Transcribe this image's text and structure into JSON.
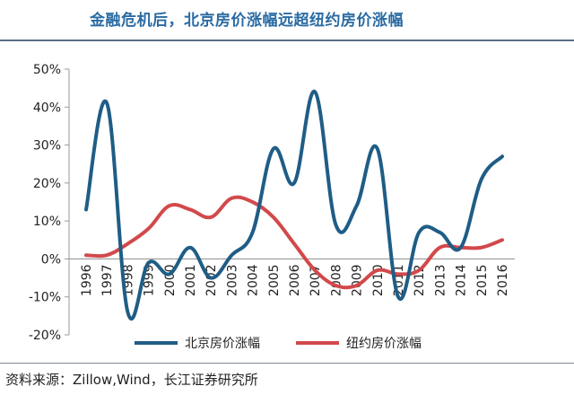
{
  "title": "金融危机后，北京房价涨幅远超纽约房价涨幅",
  "source": "资料来源：Zillow,Wind，长江证券研究所",
  "colors": {
    "beijing": "#1f5d86",
    "newyork": "#d2494b",
    "accent": "#2a6ba3"
  },
  "chart_data": {
    "type": "line",
    "title": "金融危机后，北京房价涨幅远超纽约房价涨幅",
    "xlabel": "",
    "ylabel": "",
    "categories": [
      "1996",
      "1997",
      "1998",
      "1999",
      "2000",
      "2001",
      "2002",
      "2003",
      "2004",
      "2005",
      "2006",
      "2007",
      "2008",
      "2009",
      "2010",
      "2011",
      "2012",
      "2013",
      "2014",
      "2015",
      "2016"
    ],
    "yticks": [
      "-20%",
      "-10%",
      "0%",
      "10%",
      "20%",
      "30%",
      "40%",
      "50%"
    ],
    "ylim": [
      -20,
      50
    ],
    "grid": false,
    "legend": "bottom",
    "series": [
      {
        "name": "北京房价涨幅",
        "color": "#1f5d86",
        "values": [
          13,
          41,
          -14,
          -1,
          -4,
          3,
          -5,
          1,
          7,
          29,
          20,
          44,
          9,
          14,
          29,
          -10,
          7,
          7,
          3,
          21,
          27
        ]
      },
      {
        "name": "纽约房价涨幅",
        "color": "#d2494b",
        "values": [
          1,
          1,
          4,
          8,
          14,
          13,
          11,
          16,
          15,
          11,
          4,
          -3,
          -7,
          -7,
          -3,
          -4,
          -3,
          3,
          3,
          3,
          5
        ]
      }
    ]
  }
}
